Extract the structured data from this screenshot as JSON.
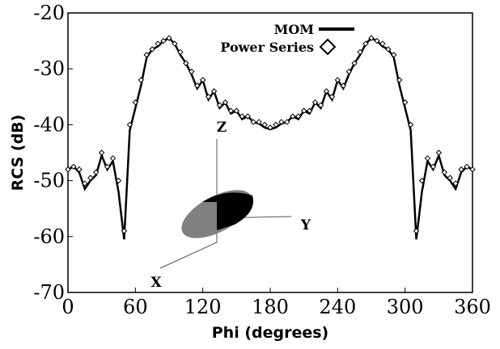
{
  "chart_data": {
    "type": "line",
    "xlabel": "Phi (degrees)",
    "ylabel": "RCS (dB)",
    "x": [
      0,
      5,
      10,
      15,
      20,
      25,
      30,
      35,
      40,
      45,
      50,
      55,
      60,
      65,
      70,
      75,
      80,
      85,
      90,
      95,
      100,
      105,
      110,
      115,
      120,
      125,
      130,
      135,
      140,
      145,
      150,
      155,
      160,
      165,
      170,
      175,
      180,
      185,
      190,
      195,
      200,
      205,
      210,
      215,
      220,
      225,
      230,
      235,
      240,
      245,
      250,
      255,
      260,
      265,
      270,
      275,
      280,
      285,
      290,
      295,
      300,
      305,
      310,
      315,
      320,
      325,
      330,
      335,
      340,
      345,
      350,
      355,
      360
    ],
    "series": [
      {
        "name": "MOM",
        "color": "#000000",
        "marker": "none",
        "values": [
          -48,
          -47.5,
          -48.5,
          -51.5,
          -50,
          -49,
          -45.5,
          -48,
          -46.5,
          -52,
          -60.5,
          -41,
          -37,
          -33,
          -28,
          -26.5,
          -26,
          -25,
          -24.5,
          -25.5,
          -27.5,
          -29,
          -31,
          -33.5,
          -32,
          -35.5,
          -34,
          -37,
          -36,
          -38,
          -37.5,
          -39,
          -38.5,
          -39.5,
          -39.8,
          -40.5,
          -40.8,
          -40.5,
          -39.8,
          -39.5,
          -38.5,
          -39,
          -37.5,
          -38,
          -36,
          -37,
          -34,
          -35.5,
          -32,
          -33.5,
          -31,
          -29,
          -27.5,
          -25.5,
          -24.5,
          -25,
          -26,
          -26.5,
          -28,
          -33,
          -37,
          -41,
          -60.5,
          -52,
          -46.5,
          -48,
          -45.5,
          -49,
          -50,
          -51.5,
          -48.5,
          -47.5,
          -48
        ]
      },
      {
        "name": "Power Series",
        "color": "#000000",
        "marker": "diamond",
        "values": [
          -48,
          -47.5,
          -48,
          -50.5,
          -49.5,
          -48.5,
          -45,
          -47.5,
          -46,
          -50,
          -59,
          -40,
          -36,
          -32,
          -27.5,
          -26.5,
          -25.5,
          -25,
          -24.5,
          -25.5,
          -27,
          -29,
          -30.5,
          -33,
          -32,
          -35,
          -34,
          -36.5,
          -36,
          -37.5,
          -37.5,
          -38.5,
          -38.5,
          -39.5,
          -39.5,
          -40,
          -40.5,
          -40,
          -39.5,
          -39.5,
          -38.5,
          -38.5,
          -37.5,
          -37.5,
          -36,
          -36.5,
          -34,
          -35,
          -32,
          -33,
          -30.5,
          -29,
          -27,
          -25.5,
          -24.5,
          -25,
          -25.5,
          -26.5,
          -27.5,
          -32,
          -36,
          -40,
          -59,
          -50,
          -46,
          -47.5,
          -45,
          -48.5,
          -49.5,
          -50.5,
          -48,
          -47.5,
          -48
        ]
      }
    ],
    "xlim": [
      0,
      360
    ],
    "xticks": [
      0,
      60,
      120,
      180,
      240,
      300,
      360
    ],
    "ylim": [
      -70,
      -20
    ],
    "yticks": [
      -20,
      -30,
      -40,
      -50,
      -60,
      -70
    ],
    "legend": "upper right",
    "annotations": [
      "Z",
      "Y",
      "X"
    ]
  }
}
